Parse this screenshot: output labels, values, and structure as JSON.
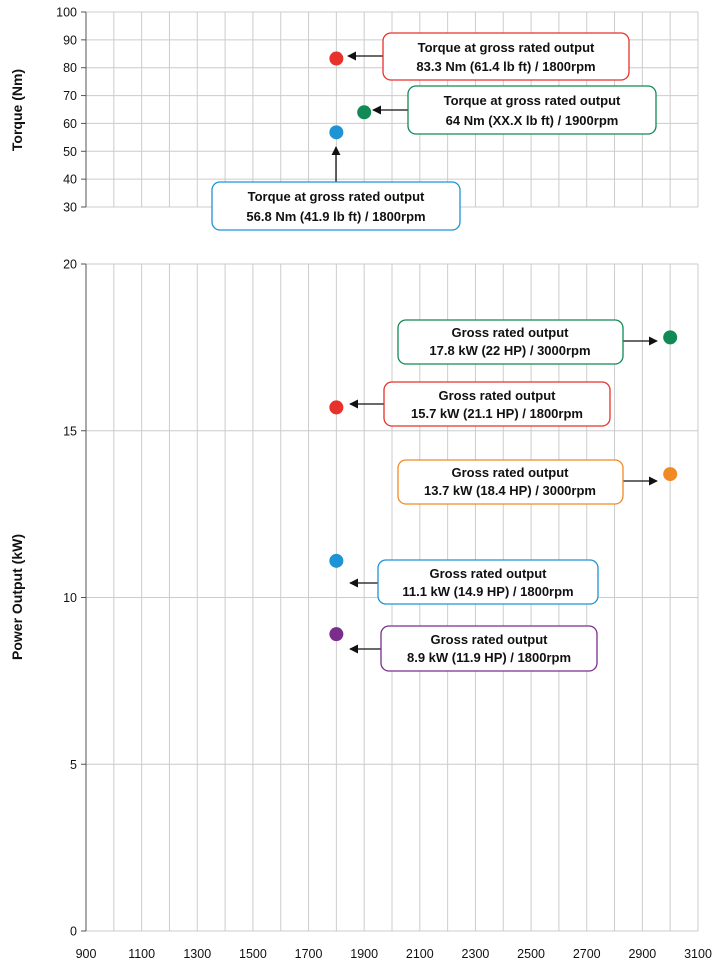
{
  "chart_data": [
    {
      "type": "scatter",
      "title": "",
      "xlabel": "",
      "ylabel": "Torque (Nm)",
      "xlim": [
        900,
        3100
      ],
      "ylim": [
        30,
        100
      ],
      "x_ticks": [
        900,
        1100,
        1300,
        1500,
        1700,
        1900,
        2100,
        2300,
        2500,
        2700,
        2900,
        3100
      ],
      "y_ticks": [
        30,
        40,
        50,
        60,
        70,
        80,
        90,
        100
      ],
      "grid": true,
      "points": [
        {
          "x": 1800,
          "y": 83.3,
          "color": "#e8312a",
          "label_line1": "Torque at gross rated output",
          "label_line2": "83.3 Nm (61.4 lb ft) / 1800rpm"
        },
        {
          "x": 1900,
          "y": 64,
          "color": "#118a55",
          "label_line1": "Torque at gross rated output",
          "label_line2": "64 Nm (XX.X lb ft) / 1900rpm"
        },
        {
          "x": 1800,
          "y": 56.8,
          "color": "#1e93d6",
          "label_line1": "Torque at gross rated output",
          "label_line2": "56.8 Nm (41.9 lb ft) / 1800rpm"
        }
      ]
    },
    {
      "type": "scatter",
      "title": "",
      "xlabel": "",
      "ylabel": "Power Output (kW)",
      "xlim": [
        900,
        3100
      ],
      "ylim": [
        0,
        20
      ],
      "x_ticks": [
        900,
        1100,
        1300,
        1500,
        1700,
        1900,
        2100,
        2300,
        2500,
        2700,
        2900,
        3100
      ],
      "y_ticks": [
        0,
        5,
        10,
        15,
        20
      ],
      "grid": true,
      "points": [
        {
          "x": 3000,
          "y": 17.8,
          "color": "#118a55",
          "label_line1": "Gross rated output",
          "label_line2": "17.8 kW (22 HP) / 3000rpm"
        },
        {
          "x": 1800,
          "y": 15.7,
          "color": "#e8312a",
          "label_line1": "Gross rated output",
          "label_line2": "15.7 kW (21.1 HP) / 1800rpm"
        },
        {
          "x": 3000,
          "y": 13.7,
          "color": "#f08a24",
          "label_line1": "Gross rated output",
          "label_line2": "13.7 kW (18.4 HP) / 3000rpm"
        },
        {
          "x": 1800,
          "y": 11.1,
          "color": "#1e93d6",
          "label_line1": "Gross rated output",
          "label_line2": "11.1 kW (14.9 HP) / 1800rpm"
        },
        {
          "x": 1800,
          "y": 8.9,
          "color": "#7b2d8e",
          "label_line1": "Gross rated output",
          "label_line2": "8.9 kW (11.9 HP) / 1800rpm"
        }
      ]
    }
  ]
}
